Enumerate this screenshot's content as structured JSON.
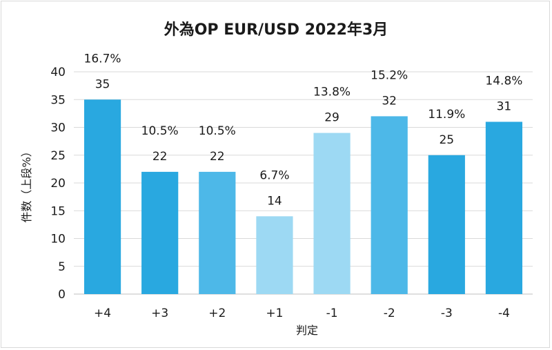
{
  "chart_data": {
    "type": "bar",
    "title": "外為OP EUR/USD 2022年3月",
    "xlabel": "判定",
    "ylabel": "件数（上段%）",
    "ylim": [
      0,
      40
    ],
    "yticks": [
      "0",
      "5",
      "10",
      "15",
      "20",
      "25",
      "30",
      "35",
      "40"
    ],
    "categories": [
      "+4",
      "+3",
      "+2",
      "+1",
      "-1",
      "-2",
      "-3",
      "-4"
    ],
    "values": [
      35,
      22,
      22,
      14,
      29,
      32,
      25,
      31
    ],
    "percent_labels": [
      "16.7%",
      "10.5%",
      "10.5%",
      "6.7%",
      "13.8%",
      "15.2%",
      "11.9%",
      "14.8%"
    ],
    "bar_colors": [
      "#29a8e0",
      "#29a8e0",
      "#4db8e8",
      "#9dd9f3",
      "#9dd9f3",
      "#4db8e8",
      "#29a8e0",
      "#29a8e0"
    ],
    "grid": true,
    "legend": "none"
  }
}
